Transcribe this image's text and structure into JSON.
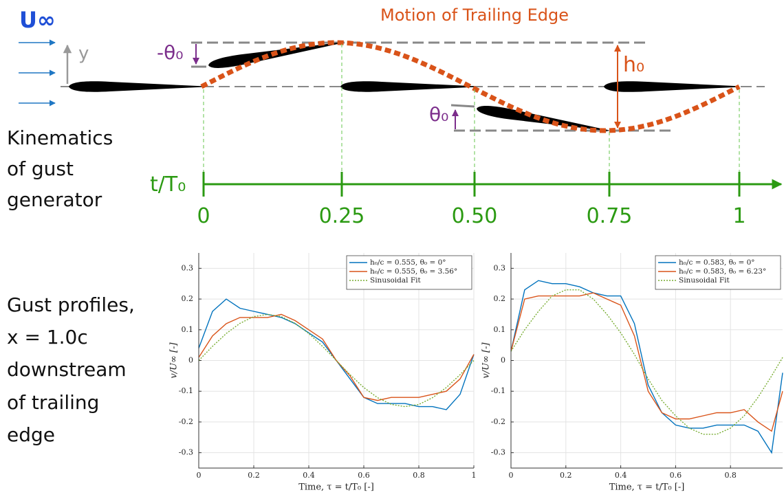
{
  "diagram": {
    "freestream_label": "U∞",
    "y_axis_label": "y",
    "title": "Motion of Trailing Edge",
    "neg_pitch_label": "-θ₀",
    "heave_label": "h₀",
    "pitch_label": "θ₀",
    "time_axis_label": "t/T₀",
    "time_ticks": [
      "0",
      "0.25",
      "0.50",
      "0.75",
      "1"
    ],
    "kinematics_label": [
      "Kinematics",
      "of gust",
      "generator"
    ],
    "profiles_label": [
      "Gust profiles,",
      "x = 1.0c",
      "downstream",
      "of trailing",
      "edge"
    ]
  },
  "chart_data": [
    {
      "type": "line",
      "x_label": "Time, τ = t/T₀ [-]",
      "y_label": "v/U∞ [-]",
      "x": [
        0,
        0.05,
        0.1,
        0.15,
        0.2,
        0.25,
        0.3,
        0.35,
        0.4,
        0.45,
        0.5,
        0.55,
        0.6,
        0.65,
        0.7,
        0.75,
        0.8,
        0.85,
        0.9,
        0.95,
        1
      ],
      "series": [
        {
          "name": "h₀/c = 0.555, θ₀ = 0°",
          "color": "#0072bd",
          "line_style": "solid",
          "values": [
            0.04,
            0.16,
            0.2,
            0.17,
            0.16,
            0.15,
            0.14,
            0.12,
            0.09,
            0.06,
            0.0,
            -0.06,
            -0.12,
            -0.14,
            -0.14,
            -0.14,
            -0.15,
            -0.15,
            -0.16,
            -0.11,
            0.02
          ]
        },
        {
          "name": "h₀/c = 0.555, θ₀ = 3.56°",
          "color": "#d95319",
          "line_style": "solid",
          "values": [
            0.01,
            0.08,
            0.12,
            0.14,
            0.14,
            0.14,
            0.15,
            0.13,
            0.1,
            0.07,
            0.0,
            -0.05,
            -0.12,
            -0.13,
            -0.12,
            -0.12,
            -0.12,
            -0.11,
            -0.1,
            -0.06,
            0.02
          ]
        },
        {
          "name": "Sinusoidal Fit",
          "color": "#77ac30",
          "line_style": "dotted",
          "values": [
            0,
            0.046,
            0.088,
            0.121,
            0.143,
            0.15,
            0.143,
            0.121,
            0.088,
            0.046,
            0,
            -0.046,
            -0.088,
            -0.121,
            -0.143,
            -0.15,
            -0.143,
            -0.121,
            -0.088,
            -0.046,
            0
          ]
        }
      ],
      "xlim": [
        0,
        1
      ],
      "xticks": [
        0,
        0.2,
        0.4,
        0.6,
        0.8,
        1
      ],
      "ylim": [
        -0.35,
        0.35
      ],
      "yticks": [
        -0.3,
        -0.2,
        -0.1,
        0,
        0.1,
        0.2,
        0.3
      ],
      "grid": true,
      "legend": "upper right"
    },
    {
      "type": "line",
      "x_label": "Time, τ = t/T₀ [-]",
      "y_label": "v/U∞ [-]",
      "x": [
        0,
        0.05,
        0.1,
        0.15,
        0.2,
        0.25,
        0.3,
        0.35,
        0.4,
        0.45,
        0.5,
        0.55,
        0.6,
        0.65,
        0.7,
        0.75,
        0.8,
        0.85,
        0.9,
        0.95,
        0.99
      ],
      "series": [
        {
          "name": "h₀/c = 0.583, θ₀ = 0°",
          "color": "#0072bd",
          "line_style": "solid",
          "values": [
            0.03,
            0.23,
            0.26,
            0.25,
            0.25,
            0.24,
            0.22,
            0.21,
            0.21,
            0.12,
            -0.08,
            -0.17,
            -0.21,
            -0.22,
            -0.22,
            -0.21,
            -0.21,
            -0.21,
            -0.23,
            -0.3,
            -0.04
          ]
        },
        {
          "name": "h₀/c = 0.583, θ₀ = 6.23°",
          "color": "#d95319",
          "line_style": "solid",
          "values": [
            0.03,
            0.2,
            0.21,
            0.21,
            0.21,
            0.21,
            0.22,
            0.2,
            0.18,
            0.08,
            -0.1,
            -0.17,
            -0.19,
            -0.19,
            -0.18,
            -0.17,
            -0.17,
            -0.16,
            -0.2,
            -0.23,
            -0.1
          ]
        },
        {
          "name": "Sinusoidal Fit",
          "color": "#77ac30",
          "line_style": "dotted",
          "values": [
            0.03,
            0.1,
            0.16,
            0.21,
            0.23,
            0.23,
            0.2,
            0.15,
            0.09,
            0.02,
            -0.06,
            -0.13,
            -0.18,
            -0.22,
            -0.24,
            -0.24,
            -0.22,
            -0.18,
            -0.12,
            -0.05,
            0.01
          ]
        }
      ],
      "xlim": [
        0,
        0.99
      ],
      "xticks": [
        0,
        0.2,
        0.4,
        0.6,
        0.8
      ],
      "ylim": [
        -0.35,
        0.35
      ],
      "yticks": [
        -0.3,
        -0.2,
        -0.1,
        0,
        0.1,
        0.2,
        0.3
      ],
      "grid": true,
      "legend": "upper right"
    }
  ]
}
